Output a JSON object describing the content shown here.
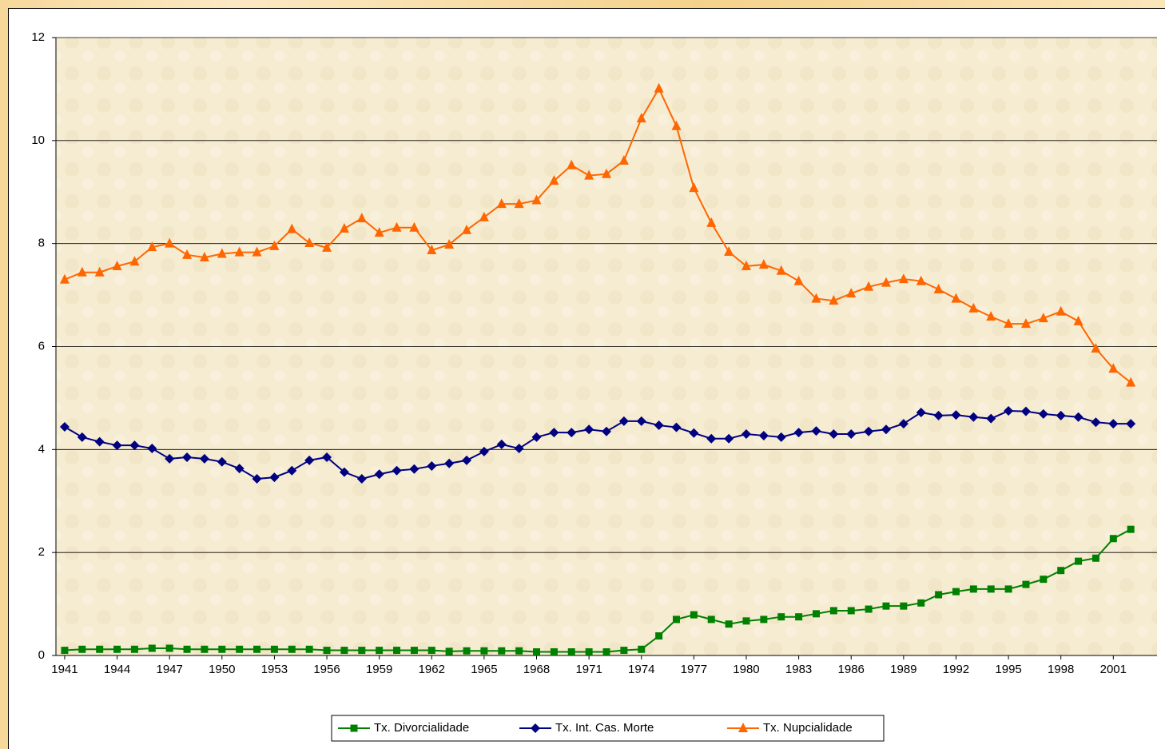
{
  "chart_data": {
    "type": "line",
    "x": [
      1941,
      1942,
      1943,
      1944,
      1945,
      1946,
      1947,
      1948,
      1949,
      1950,
      1951,
      1952,
      1953,
      1954,
      1955,
      1956,
      1957,
      1958,
      1959,
      1960,
      1961,
      1962,
      1963,
      1964,
      1965,
      1966,
      1967,
      1968,
      1969,
      1970,
      1971,
      1972,
      1973,
      1974,
      1975,
      1976,
      1977,
      1978,
      1979,
      1980,
      1981,
      1982,
      1983,
      1984,
      1985,
      1986,
      1987,
      1988,
      1989,
      1990,
      1991,
      1992,
      1993,
      1994,
      1995,
      1996,
      1997,
      1998,
      1999,
      2000,
      2001,
      2002
    ],
    "xlim": [
      1940.5,
      2003.5
    ],
    "xticks": [
      1941,
      1944,
      1947,
      1950,
      1953,
      1956,
      1959,
      1962,
      1965,
      1968,
      1971,
      1974,
      1977,
      1980,
      1983,
      1986,
      1989,
      1992,
      1995,
      1998,
      2001
    ],
    "ylim": [
      0,
      12
    ],
    "yticks": [
      0,
      2,
      4,
      6,
      8,
      10,
      12
    ],
    "grid": true,
    "series": [
      {
        "name": "Tx. Divorcialidade",
        "color": "#008000",
        "marker": "square",
        "values": [
          0.1,
          0.12,
          0.12,
          0.12,
          0.12,
          0.14,
          0.14,
          0.12,
          0.12,
          0.12,
          0.12,
          0.12,
          0.12,
          0.12,
          0.12,
          0.1,
          0.1,
          0.1,
          0.1,
          0.1,
          0.1,
          0.1,
          0.08,
          0.09,
          0.09,
          0.09,
          0.09,
          0.07,
          0.07,
          0.07,
          0.07,
          0.07,
          0.1,
          0.12,
          0.38,
          0.7,
          0.79,
          0.7,
          0.61,
          0.67,
          0.7,
          0.75,
          0.75,
          0.81,
          0.87,
          0.87,
          0.9,
          0.96,
          0.96,
          1.02,
          1.18,
          1.24,
          1.29,
          1.29,
          1.29,
          1.38,
          1.48,
          1.65,
          1.83,
          1.89,
          2.27,
          2.45
        ]
      },
      {
        "name": "Tx. Int. Cas. Morte",
        "color": "#000080",
        "marker": "diamond",
        "values": [
          4.44,
          4.24,
          4.15,
          4.08,
          4.08,
          4.02,
          3.82,
          3.85,
          3.82,
          3.76,
          3.63,
          3.43,
          3.46,
          3.59,
          3.79,
          3.85,
          3.56,
          3.43,
          3.52,
          3.59,
          3.62,
          3.68,
          3.73,
          3.79,
          3.96,
          4.1,
          4.02,
          4.24,
          4.33,
          4.33,
          4.39,
          4.35,
          4.55,
          4.55,
          4.47,
          4.43,
          4.32,
          4.21,
          4.21,
          4.3,
          4.27,
          4.24,
          4.33,
          4.36,
          4.3,
          4.3,
          4.35,
          4.39,
          4.5,
          4.72,
          4.66,
          4.67,
          4.63,
          4.6,
          4.75,
          4.74,
          4.69,
          4.66,
          4.63,
          4.53,
          4.5,
          4.5
        ]
      },
      {
        "name": "Tx. Nupcialidade",
        "color": "#ff6600",
        "marker": "triangle",
        "values": [
          7.3,
          7.44,
          7.44,
          7.56,
          7.65,
          7.93,
          8.0,
          7.78,
          7.73,
          7.8,
          7.83,
          7.83,
          7.95,
          8.28,
          8.01,
          7.92,
          8.29,
          8.49,
          8.21,
          8.31,
          8.31,
          7.87,
          7.98,
          8.26,
          8.51,
          8.77,
          8.77,
          8.84,
          9.22,
          9.52,
          9.32,
          9.35,
          9.61,
          10.43,
          11.01,
          10.28,
          9.08,
          8.4,
          7.84,
          7.56,
          7.59,
          7.47,
          7.27,
          6.93,
          6.89,
          7.03,
          7.16,
          7.24,
          7.31,
          7.27,
          7.11,
          6.93,
          6.74,
          6.58,
          6.44,
          6.44,
          6.55,
          6.68,
          6.49,
          5.96,
          5.57,
          5.3
        ]
      }
    ]
  }
}
